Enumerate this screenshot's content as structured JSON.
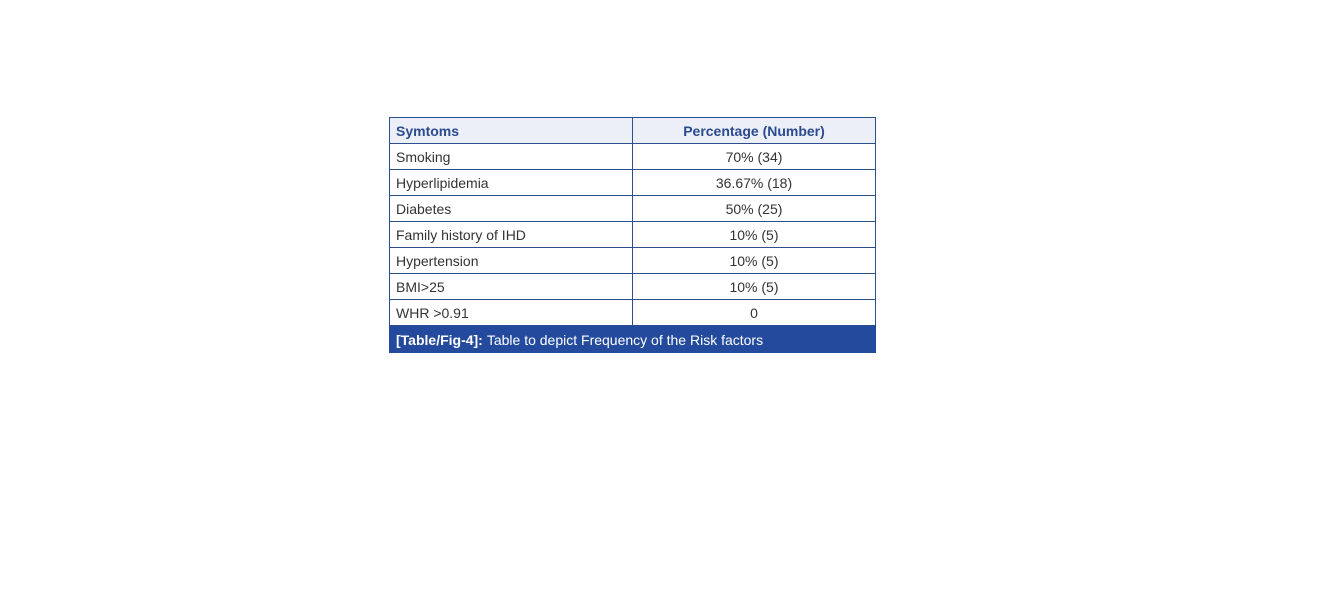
{
  "table": {
    "headers": [
      "Symtoms",
      "Percentage (Number)"
    ],
    "rows": [
      [
        "Smoking",
        "70% (34)"
      ],
      [
        "Hyperlipidemia",
        "36.67% (18)"
      ],
      [
        "Diabetes",
        "50% (25)"
      ],
      [
        "Family history of IHD",
        "10% (5)"
      ],
      [
        "Hypertension",
        "10% (5)"
      ],
      [
        "BMI>25",
        "10% (5)"
      ],
      [
        "WHR >0.91",
        "0"
      ]
    ]
  },
  "caption": {
    "label": "[Table/Fig-4]:",
    "text": "Table to depict Frequency of the Risk factors"
  }
}
